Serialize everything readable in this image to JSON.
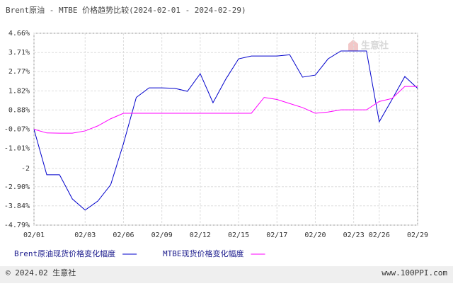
{
  "chart_data": {
    "type": "line",
    "title": "Brent原油 - MTBE 价格趋势比较(2024-02-01 - 2024-02-29)",
    "categories": [
      "02/01",
      null,
      null,
      null,
      "02/03",
      null,
      null,
      "02/06",
      null,
      null,
      "02/09",
      null,
      null,
      "02/12",
      null,
      null,
      "02/15",
      null,
      null,
      "02/17",
      null,
      null,
      "02/20",
      null,
      null,
      "02/23",
      null,
      "02/26",
      null,
      null,
      "02/29"
    ],
    "series": [
      {
        "name": "Brent原油现货价格变化幅度",
        "color": "#0000cc",
        "values": [
          -0.07,
          -2.31,
          -2.31,
          -3.5,
          -4.05,
          -3.6,
          -2.8,
          -0.77,
          1.5,
          1.97,
          1.97,
          1.95,
          1.8,
          2.67,
          1.24,
          2.4,
          3.4,
          3.54,
          3.54,
          3.54,
          3.6,
          2.5,
          2.6,
          3.4,
          3.79,
          3.79,
          3.79,
          0.3,
          1.4,
          2.53,
          1.95
        ]
      },
      {
        "name": "MTBE现货价格变化幅度",
        "color": "#ff00ff",
        "values": [
          -0.07,
          -0.25,
          -0.26,
          -0.26,
          -0.15,
          0.1,
          0.45,
          0.72,
          0.72,
          0.72,
          0.72,
          0.72,
          0.72,
          0.72,
          0.72,
          0.72,
          0.72,
          0.72,
          1.5,
          1.4,
          1.2,
          1.0,
          0.72,
          0.78,
          0.89,
          0.89,
          0.89,
          1.3,
          1.45,
          2.04,
          2.04
        ]
      }
    ],
    "ylim": [
      -4.79,
      4.66
    ],
    "yticks": [
      {
        "value": 4.66,
        "label": "4.66%"
      },
      {
        "value": 3.71,
        "label": "3.71%"
      },
      {
        "value": 2.77,
        "label": "2.77%"
      },
      {
        "value": 1.82,
        "label": "1.82%"
      },
      {
        "value": 0.88,
        "label": "0.88%"
      },
      {
        "value": -0.07,
        "label": "-0.07%"
      },
      {
        "value": -1.01,
        "label": "-1.01%"
      },
      -2,
      {
        "value": -2.9,
        "label": "-2.90%"
      },
      {
        "value": -3.84,
        "label": "-3.84%"
      },
      {
        "value": -4.79,
        "label": "-4.79%"
      }
    ],
    "grid": true,
    "watermark": "生意社",
    "footer_left": "© 2024.02 生意社",
    "footer_right": "www.100PPI.com"
  }
}
